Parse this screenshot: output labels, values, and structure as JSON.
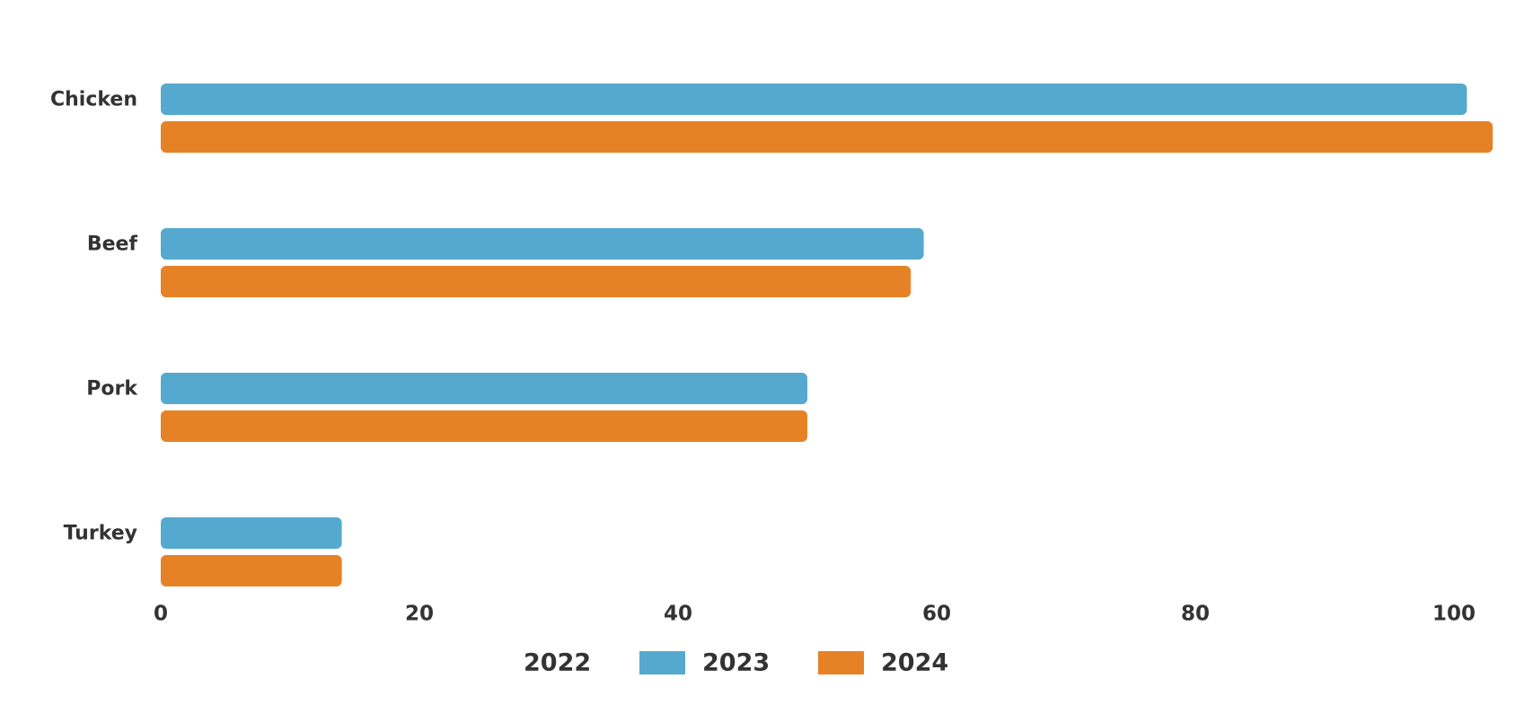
{
  "chart_data": {
    "type": "bar",
    "orientation": "horizontal",
    "categories": [
      "Chicken",
      "Beef",
      "Pork",
      "Turkey"
    ],
    "series": [
      {
        "name": "2023",
        "color": "#55a9cf",
        "values": [
          101,
          59,
          50,
          14
        ]
      },
      {
        "name": "2024",
        "color": "#e68226",
        "values": [
          103,
          58,
          50,
          14
        ]
      }
    ],
    "legend": {
      "placement": "bottom",
      "entries": [
        {
          "label": "2022",
          "swatch": false
        },
        {
          "label": "2023",
          "swatch": true,
          "color": "#55a9cf"
        },
        {
          "label": "2024",
          "swatch": true,
          "color": "#e68226"
        }
      ]
    },
    "xlim": [
      0,
      103
    ],
    "xticks": [
      0,
      20,
      40,
      60,
      80,
      100
    ],
    "grid": false,
    "title": "",
    "xlabel": "",
    "ylabel": ""
  }
}
